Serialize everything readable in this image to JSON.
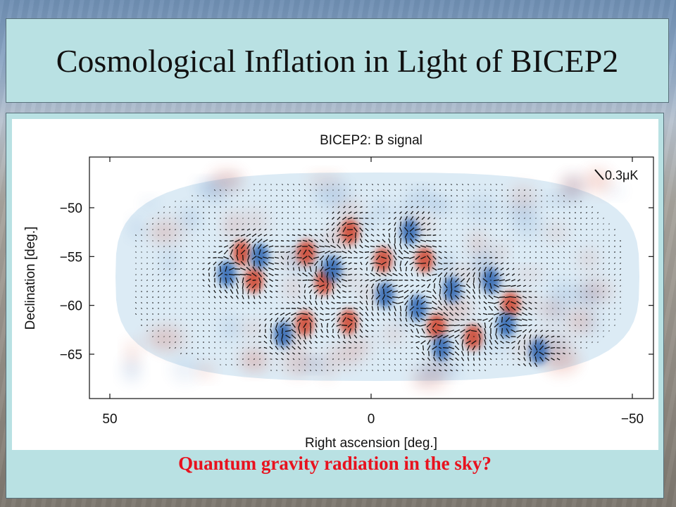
{
  "slide": {
    "title": "Cosmological Inflation in Light of BICEP2",
    "question": "Quantum gravity radiation in the sky?"
  },
  "chart_data": {
    "type": "heatmap",
    "title": "BICEP2: B signal",
    "xlabel": "Right ascension [deg.]",
    "ylabel": "Declination [deg.]",
    "xlim": [
      55,
      -55
    ],
    "ylim": [
      -70,
      -45
    ],
    "xticks": [
      50,
      0,
      -50
    ],
    "xtick_labels": [
      "50",
      "0",
      "−50"
    ],
    "yticks": [
      -50,
      -55,
      -60,
      -65
    ],
    "ytick_labels": [
      "−50",
      "−55",
      "−60",
      "−65"
    ],
    "scale_label": "0.3μK",
    "colors": {
      "positive": "#d0432a",
      "negative": "#2a64b0",
      "field": "#dcebf5"
    }
  }
}
